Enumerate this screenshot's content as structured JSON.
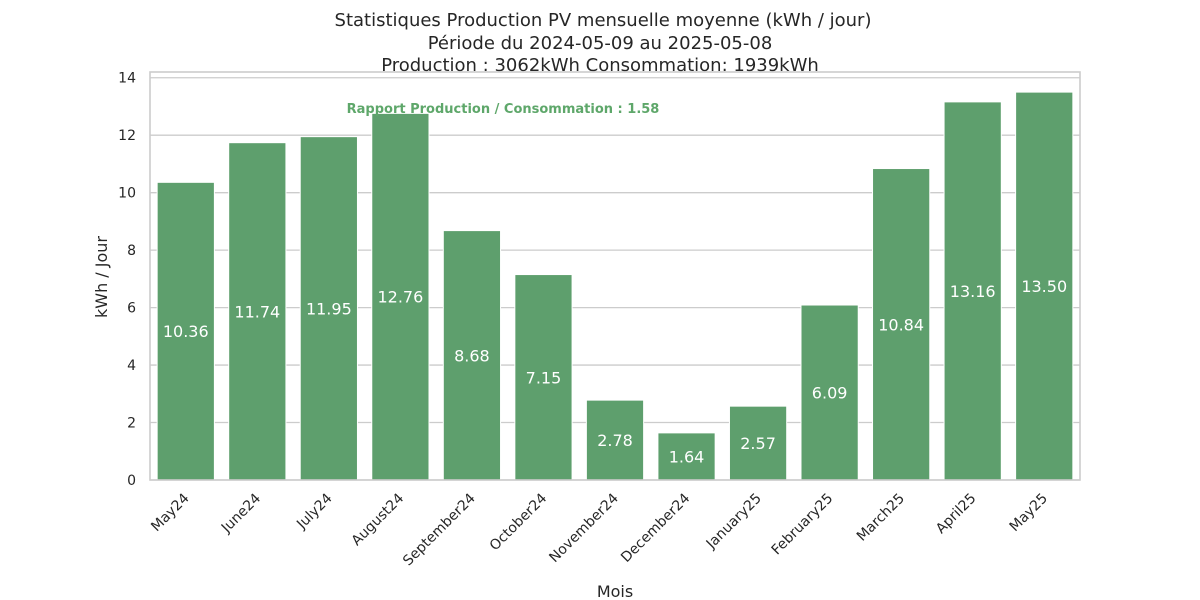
{
  "chart_data": {
    "type": "bar",
    "title_lines": [
      "Statistiques Production PV mensuelle moyenne (kWh / jour)",
      "Période du 2024-05-09 au 2025-05-08",
      "Production : 3062kWh Consommation: 1939kWh"
    ],
    "xlabel": "Mois",
    "ylabel": "kWh / Jour",
    "categories": [
      "May24",
      "June24",
      "July24",
      "August24",
      "September24",
      "October24",
      "November24",
      "December24",
      "January25",
      "February25",
      "March25",
      "April25",
      "May25"
    ],
    "values": [
      10.36,
      11.74,
      11.95,
      12.76,
      8.68,
      7.15,
      2.78,
      1.64,
      2.57,
      6.09,
      10.84,
      13.16,
      13.5
    ],
    "value_labels": [
      "10.36",
      "11.74",
      "11.95",
      "12.76",
      "8.68",
      "7.15",
      "2.78",
      "1.64",
      "2.57",
      "6.09",
      "10.84",
      "13.16",
      "13.50"
    ],
    "ylim": [
      0,
      14.2
    ],
    "yticks": [
      0,
      2,
      4,
      6,
      8,
      10,
      12,
      14
    ],
    "grid": true,
    "annotation": "Rapport Production / Consommation : 1.58",
    "colors": {
      "bar": "#5e9f6d",
      "annotation": "#5ea76a",
      "grid": "#cccccc",
      "frame": "#cccccc"
    }
  }
}
